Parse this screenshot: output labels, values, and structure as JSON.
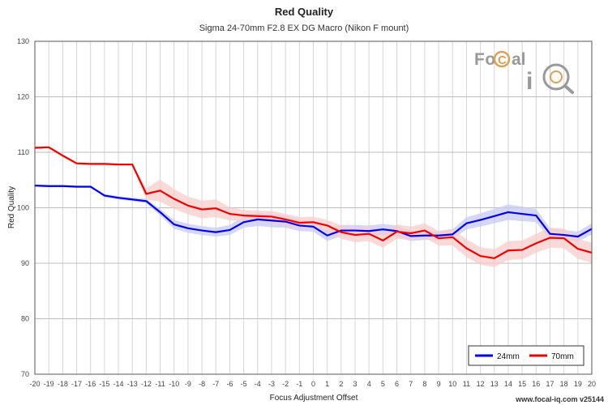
{
  "chart_data": {
    "type": "line",
    "title": "Red Quality",
    "subtitle": "Sigma 24-70mm F2.8 EX DG Macro (Nikon F mount)",
    "xlabel": "Focus Adjustment Offset",
    "ylabel": "Red Quality",
    "xlim": [
      -20,
      20
    ],
    "ylim": [
      70,
      130
    ],
    "x_ticks": [
      -20,
      -19,
      -18,
      -17,
      -16,
      -15,
      -14,
      -13,
      -12,
      -11,
      -10,
      -9,
      -8,
      -7,
      -6,
      -5,
      -4,
      -3,
      -2,
      -1,
      0,
      1,
      2,
      3,
      4,
      5,
      6,
      7,
      8,
      9,
      10,
      11,
      12,
      13,
      14,
      15,
      16,
      17,
      18,
      19,
      20
    ],
    "y_ticks": [
      70,
      80,
      90,
      100,
      110,
      120,
      130
    ],
    "grid": true,
    "legend_position": "bottom-right",
    "footer": "www.focal-iq.com  v25144",
    "logo": {
      "text_top": "Focal",
      "text_bottom": "iQ",
      "accent_color": "#d8a25a",
      "gray_color": "#999999"
    },
    "series": [
      {
        "name": "24mm",
        "color": "#0000e6",
        "band_color": "#c8c8f4",
        "x": [
          -20,
          -19,
          -18,
          -17,
          -16,
          -15,
          -14,
          -13,
          -12,
          -11,
          -10,
          -9,
          -8,
          -7,
          -6,
          -5,
          -4,
          -3,
          -2,
          -1,
          0,
          1,
          2,
          3,
          4,
          5,
          6,
          7,
          8,
          9,
          10,
          11,
          12,
          13,
          14,
          15,
          16,
          17,
          18,
          19,
          20
        ],
        "values": [
          104.0,
          103.9,
          103.9,
          103.8,
          103.8,
          102.2,
          101.8,
          101.5,
          101.2,
          99.2,
          97.0,
          96.3,
          95.9,
          95.6,
          96.0,
          97.4,
          97.9,
          97.7,
          97.5,
          96.8,
          96.6,
          95.0,
          95.9,
          95.9,
          95.8,
          96.1,
          95.8,
          94.9,
          95.0,
          95.0,
          95.2,
          97.2,
          97.8,
          98.5,
          99.2,
          98.9,
          98.6,
          95.3,
          95.1,
          94.8,
          96.2
        ],
        "band": [
          0.2,
          0.2,
          0.2,
          0.2,
          0.2,
          0.3,
          0.3,
          0.3,
          0.4,
          0.6,
          0.8,
          0.8,
          0.8,
          0.8,
          0.9,
          1.0,
          1.2,
          1.2,
          1.1,
          1.0,
          0.9,
          1.0,
          1.0,
          1.0,
          1.0,
          1.0,
          1.0,
          0.9,
          0.8,
          0.8,
          0.9,
          1.1,
          1.2,
          1.3,
          1.4,
          1.3,
          1.2,
          1.0,
          0.9,
          0.9,
          1.0
        ]
      },
      {
        "name": "70mm",
        "color": "#ee0000",
        "band_color": "#f8cccc",
        "x": [
          -20,
          -19,
          -18,
          -17,
          -16,
          -15,
          -14,
          -13,
          -12,
          -11,
          -10,
          -9,
          -8,
          -7,
          -6,
          -5,
          -4,
          -3,
          -2,
          -1,
          0,
          1,
          2,
          3,
          4,
          5,
          6,
          7,
          8,
          9,
          10,
          11,
          12,
          13,
          14,
          15,
          16,
          17,
          18,
          19,
          20
        ],
        "values": [
          110.8,
          110.9,
          109.4,
          108.0,
          107.9,
          107.9,
          107.8,
          107.8,
          102.5,
          103.1,
          101.6,
          100.4,
          99.7,
          99.9,
          98.9,
          98.6,
          98.5,
          98.4,
          97.9,
          97.3,
          97.4,
          96.8,
          95.6,
          95.1,
          95.3,
          94.1,
          95.7,
          95.4,
          95.9,
          94.5,
          94.7,
          92.7,
          91.3,
          90.9,
          92.3,
          92.4,
          93.6,
          94.6,
          94.5,
          92.6,
          91.9
        ],
        "band": [
          0.2,
          0.2,
          0.2,
          0.2,
          0.2,
          0.2,
          0.2,
          0.2,
          1.0,
          2.0,
          1.8,
          1.6,
          1.6,
          1.6,
          1.2,
          1.0,
          1.0,
          1.0,
          1.0,
          1.0,
          1.0,
          1.0,
          1.2,
          1.3,
          1.3,
          1.3,
          1.3,
          1.2,
          1.3,
          1.3,
          1.5,
          1.6,
          1.6,
          1.6,
          1.7,
          1.7,
          1.7,
          1.8,
          1.8,
          1.8,
          1.8
        ]
      }
    ]
  }
}
